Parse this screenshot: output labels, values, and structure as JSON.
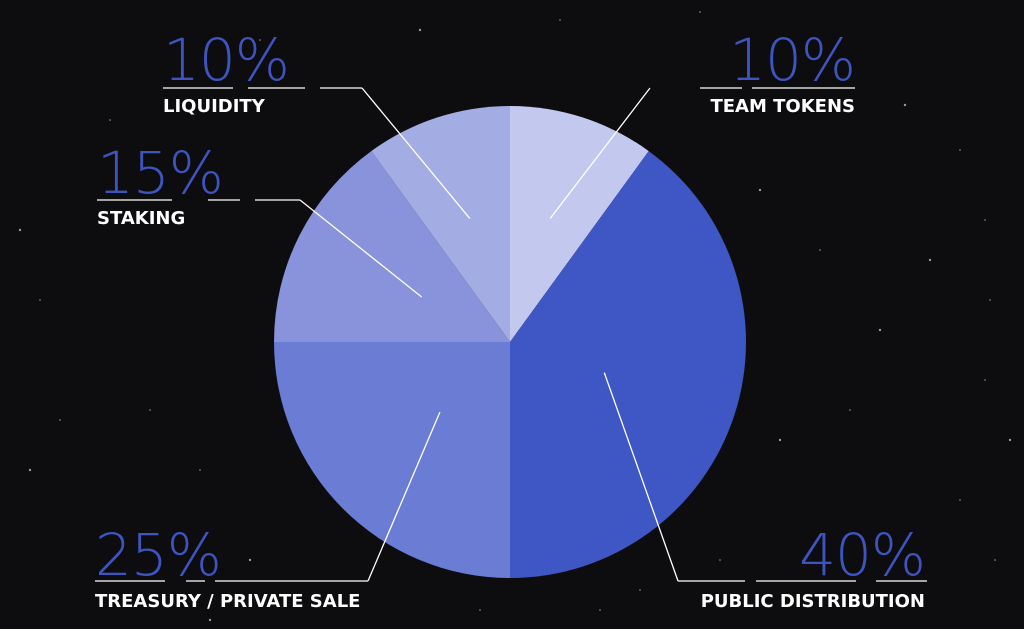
{
  "chart_data": {
    "type": "pie",
    "title": "",
    "legend": "none",
    "slices": [
      {
        "label": "TEAM TOKENS",
        "value": 10,
        "value_label": "10%",
        "color": "#c2c8ee"
      },
      {
        "label": "PUBLIC DISTRIBUTION",
        "value": 40,
        "value_label": "40%",
        "color": "#3f57c4"
      },
      {
        "label": "TREASURY / PRIVATE SALE",
        "value": 25,
        "value_label": "25%",
        "color": "#6a7cd4"
      },
      {
        "label": "STAKING",
        "value": 15,
        "value_label": "15%",
        "color": "#8893dc"
      },
      {
        "label": "LIQUIDITY",
        "value": 10,
        "value_label": "10%",
        "color": "#a3ace3"
      }
    ]
  },
  "colors": {
    "background": "#0d0d0f",
    "percent_text": "#3e54c0",
    "label_text": "#ffffff",
    "leader_line": "#ffffff"
  }
}
